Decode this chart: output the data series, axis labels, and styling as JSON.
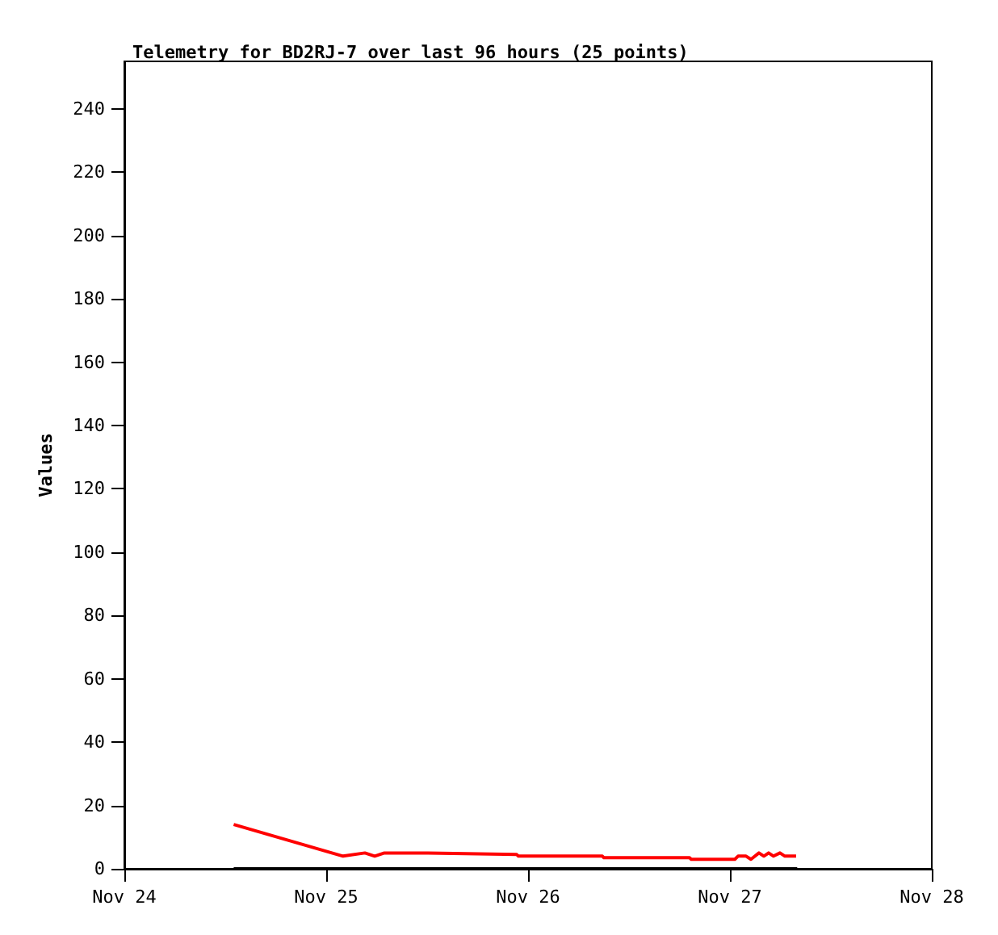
{
  "chart_data": {
    "type": "line",
    "title": "Telemetry for BD2RJ-7 over last 96 hours (25 points)",
    "ylabel": "Values",
    "series": [
      {
        "color": "#000000",
        "x": [
          "--11-24T13:00",
          "--11-27T08:00"
        ],
        "values": [
          0,
          0
        ]
      },
      {
        "color": "#ff0000",
        "x": [
          "--11-24T13:00",
          "--11-25T02:00",
          "--11-25T04:36",
          "--11-25T05:46",
          "--11-25T06:55",
          "--11-25T12:06",
          "--11-25T22:39",
          "--11-25T22:51",
          "--11-26T08:50",
          "--11-26T09:01",
          "--11-26T19:12",
          "--11-26T19:24",
          "--11-27T00:35",
          "--11-27T00:58",
          "--11-27T01:55",
          "--11-27T02:30",
          "--11-27T03:27",
          "--11-27T04:02",
          "--11-27T04:36",
          "--11-27T05:11",
          "--11-27T05:57",
          "--11-27T06:32",
          "--11-27T07:52"
        ],
        "values": [
          14,
          4,
          5,
          4,
          5,
          5,
          4.5,
          4,
          4,
          3.5,
          3.5,
          3,
          3,
          4,
          4,
          3,
          5,
          4,
          5,
          4,
          5,
          4,
          4
        ]
      }
    ],
    "xlim": [
      "--11-24",
      "--11-28"
    ],
    "xticks": [
      {
        "value": "--11-24",
        "label": "Nov 24"
      },
      {
        "value": "--11-25",
        "label": "Nov 25"
      },
      {
        "value": "--11-26",
        "label": "Nov 26"
      },
      {
        "value": "--11-27",
        "label": "Nov 27"
      },
      {
        "value": "--11-28",
        "label": "Nov 28"
      }
    ],
    "ylim": [
      0,
      255
    ],
    "yticks": [
      0,
      20,
      40,
      60,
      80,
      100,
      120,
      140,
      160,
      180,
      200,
      220,
      240
    ],
    "line_style": "solid"
  }
}
